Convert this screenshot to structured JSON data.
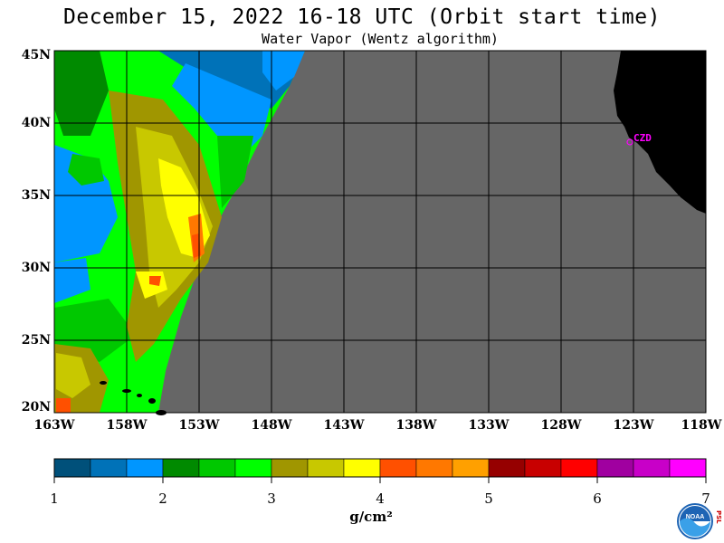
{
  "header": {
    "title": "December 15, 2022  16-18 UTC  (Orbit start time)",
    "subtitle": "Water Vapor (Wentz algorithm)"
  },
  "map": {
    "lat_labels": [
      "45N",
      "40N",
      "35N",
      "30N",
      "25N",
      "20N"
    ],
    "lon_labels": [
      "163W",
      "158W",
      "153W",
      "148W",
      "143W",
      "138W",
      "133W",
      "128W",
      "123W",
      "118W"
    ],
    "lat_range": [
      20,
      45
    ],
    "lon_range": [
      -163,
      -118
    ],
    "no_data_color": "#666666",
    "land_color": "#000000",
    "city_label": "CZD"
  },
  "colorbar": {
    "colors": [
      "#00507a",
      "#0072b8",
      "#0096ff",
      "#008a00",
      "#00c800",
      "#00ff00",
      "#a09600",
      "#c8c800",
      "#ffff00",
      "#ff5000",
      "#ff7800",
      "#ffa000",
      "#960000",
      "#c80000",
      "#ff0000",
      "#a000a0",
      "#c800c8",
      "#ff00ff"
    ],
    "tick_labels": [
      "1",
      "2",
      "3",
      "4",
      "5",
      "6",
      "7"
    ],
    "unit": "g/cm²"
  },
  "branding": {
    "logo_text": "NOAA",
    "side_text": "PSL"
  }
}
